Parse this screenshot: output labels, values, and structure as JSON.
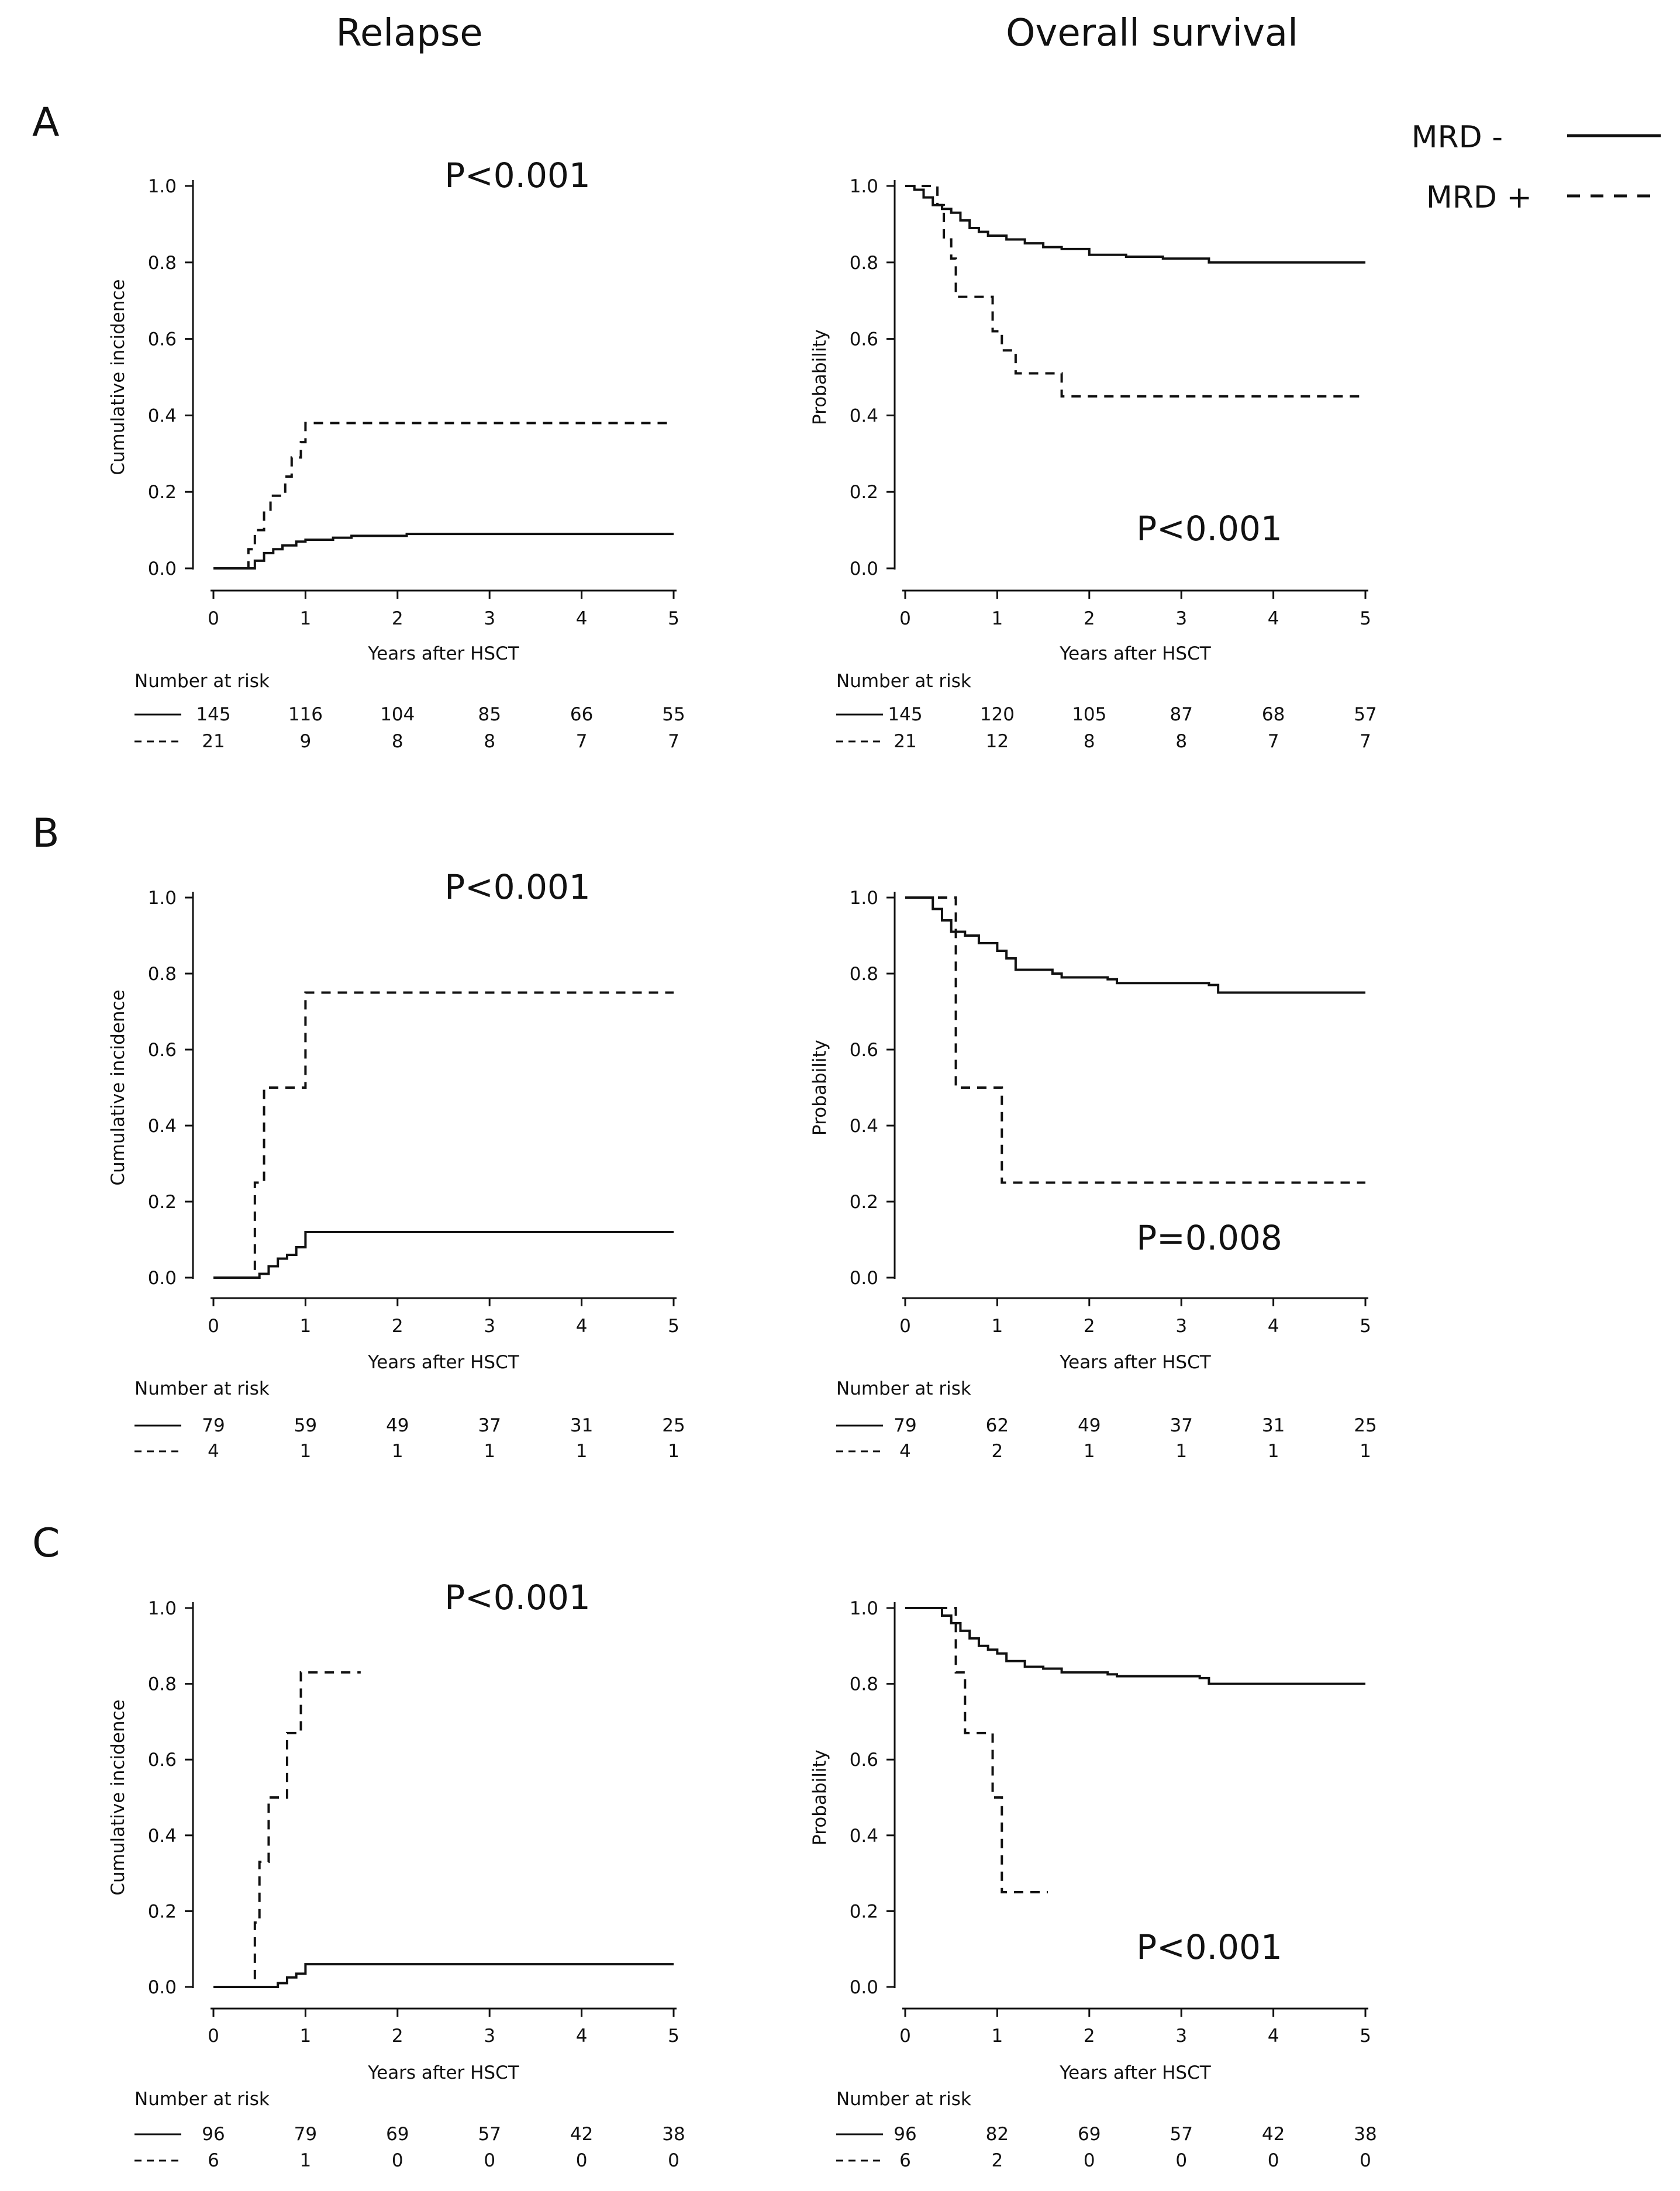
{
  "figure": {
    "column_headers": [
      "Relapse",
      "Overall survival"
    ],
    "legend": [
      {
        "label": "MRD -",
        "style": "solid"
      },
      {
        "label": "MRD +",
        "style": "dashed"
      }
    ],
    "colors": {
      "line": "#111111",
      "background": "#ffffff"
    },
    "risk_table_title": "Number at risk",
    "panels": [
      {
        "letter": "A"
      },
      {
        "letter": "B"
      },
      {
        "letter": "C"
      }
    ]
  },
  "chart_data": [
    {
      "id": "A-relapse",
      "panel": "A",
      "type": "line",
      "step": true,
      "title": "Relapse",
      "xlabel": "Years after HSCT",
      "ylabel": "Cumulative incidence",
      "xlim": [
        0,
        5
      ],
      "ylim": [
        0,
        1
      ],
      "xticks": [
        0,
        1,
        2,
        3,
        4,
        5
      ],
      "yticks": [
        "0.0",
        "0.2",
        "0.4",
        "0.6",
        "0.8",
        "1.0"
      ],
      "pvalue": "P<0.001",
      "pvalue_pos": "top-right",
      "series": [
        {
          "name": "MRD -",
          "style": "solid",
          "points": [
            [
              0,
              0
            ],
            [
              0.38,
              0
            ],
            [
              0.45,
              0.02
            ],
            [
              0.55,
              0.04
            ],
            [
              0.65,
              0.05
            ],
            [
              0.75,
              0.06
            ],
            [
              0.9,
              0.07
            ],
            [
              1.0,
              0.075
            ],
            [
              1.3,
              0.08
            ],
            [
              1.5,
              0.085
            ],
            [
              2.1,
              0.09
            ],
            [
              5,
              0.09
            ]
          ]
        },
        {
          "name": "MRD +",
          "style": "dashed",
          "points": [
            [
              0,
              0
            ],
            [
              0.35,
              0
            ],
            [
              0.38,
              0.05
            ],
            [
              0.45,
              0.1
            ],
            [
              0.55,
              0.15
            ],
            [
              0.62,
              0.19
            ],
            [
              0.78,
              0.24
            ],
            [
              0.85,
              0.29
            ],
            [
              0.95,
              0.33
            ],
            [
              1.0,
              0.38
            ],
            [
              5,
              0.38
            ]
          ]
        }
      ],
      "risk_table": {
        "x": [
          0,
          1,
          2,
          3,
          4,
          5
        ],
        "rows": [
          {
            "style": "solid",
            "values": [
              "145",
              "116",
              "104",
              "85",
              "66",
              "55"
            ]
          },
          {
            "style": "dashed",
            "values": [
              "21",
              "9",
              "8",
              "8",
              "7",
              "7"
            ]
          }
        ]
      }
    },
    {
      "id": "A-os",
      "panel": "A",
      "type": "line",
      "step": true,
      "title": "Overall survival",
      "xlabel": "Years after HSCT",
      "ylabel": "Probability",
      "xlim": [
        0,
        5
      ],
      "ylim": [
        0,
        1
      ],
      "xticks": [
        0,
        1,
        2,
        3,
        4,
        5
      ],
      "yticks": [
        "0.0",
        "0.2",
        "0.4",
        "0.6",
        "0.8",
        "1.0"
      ],
      "pvalue": "P<0.001",
      "pvalue_pos": "bottom-right",
      "series": [
        {
          "name": "MRD -",
          "style": "solid",
          "points": [
            [
              0,
              1
            ],
            [
              0.1,
              0.99
            ],
            [
              0.2,
              0.97
            ],
            [
              0.3,
              0.95
            ],
            [
              0.4,
              0.94
            ],
            [
              0.5,
              0.93
            ],
            [
              0.6,
              0.91
            ],
            [
              0.7,
              0.89
            ],
            [
              0.8,
              0.88
            ],
            [
              0.9,
              0.87
            ],
            [
              1.1,
              0.86
            ],
            [
              1.3,
              0.85
            ],
            [
              1.5,
              0.84
            ],
            [
              1.7,
              0.835
            ],
            [
              2.0,
              0.82
            ],
            [
              2.4,
              0.815
            ],
            [
              2.8,
              0.81
            ],
            [
              3.3,
              0.8
            ],
            [
              5,
              0.8
            ]
          ]
        },
        {
          "name": "MRD +",
          "style": "dashed",
          "points": [
            [
              0,
              1
            ],
            [
              0.3,
              1
            ],
            [
              0.35,
              0.95
            ],
            [
              0.42,
              0.86
            ],
            [
              0.5,
              0.81
            ],
            [
              0.55,
              0.71
            ],
            [
              0.85,
              0.71
            ],
            [
              0.95,
              0.62
            ],
            [
              1.05,
              0.57
            ],
            [
              1.2,
              0.51
            ],
            [
              1.65,
              0.51
            ],
            [
              1.7,
              0.45
            ],
            [
              5,
              0.45
            ]
          ]
        }
      ],
      "risk_table": {
        "x": [
          0,
          1,
          2,
          3,
          4,
          5
        ],
        "rows": [
          {
            "style": "solid",
            "values": [
              "145",
              "120",
              "105",
              "87",
              "68",
              "57"
            ]
          },
          {
            "style": "dashed",
            "values": [
              "21",
              "12",
              "8",
              "8",
              "7",
              "7"
            ]
          }
        ]
      }
    },
    {
      "id": "B-relapse",
      "panel": "B",
      "type": "line",
      "step": true,
      "title": "Relapse",
      "xlabel": "Years after HSCT",
      "ylabel": "Cumulative incidence",
      "xlim": [
        0,
        5
      ],
      "ylim": [
        0,
        1
      ],
      "xticks": [
        0,
        1,
        2,
        3,
        4,
        5
      ],
      "yticks": [
        "0.0",
        "0.2",
        "0.4",
        "0.6",
        "0.8",
        "1.0"
      ],
      "pvalue": "P<0.001",
      "pvalue_pos": "top-right",
      "series": [
        {
          "name": "MRD -",
          "style": "solid",
          "points": [
            [
              0,
              0
            ],
            [
              0.45,
              0
            ],
            [
              0.5,
              0.01
            ],
            [
              0.6,
              0.03
            ],
            [
              0.7,
              0.05
            ],
            [
              0.8,
              0.06
            ],
            [
              0.9,
              0.08
            ],
            [
              1.0,
              0.12
            ],
            [
              5,
              0.12
            ]
          ]
        },
        {
          "name": "MRD +",
          "style": "dashed",
          "points": [
            [
              0,
              0
            ],
            [
              0.45,
              0
            ],
            [
              0.45,
              0.25
            ],
            [
              0.55,
              0.25
            ],
            [
              0.55,
              0.5
            ],
            [
              1.0,
              0.5
            ],
            [
              1.0,
              0.75
            ],
            [
              5,
              0.75
            ]
          ]
        }
      ],
      "risk_table": {
        "x": [
          0,
          1,
          2,
          3,
          4,
          5
        ],
        "rows": [
          {
            "style": "solid",
            "values": [
              "79",
              "59",
              "49",
              "37",
              "31",
              "25"
            ]
          },
          {
            "style": "dashed",
            "values": [
              "4",
              "1",
              "1",
              "1",
              "1",
              "1"
            ]
          }
        ]
      }
    },
    {
      "id": "B-os",
      "panel": "B",
      "type": "line",
      "step": true,
      "title": "Overall survival",
      "xlabel": "Years after HSCT",
      "ylabel": "Probability",
      "xlim": [
        0,
        5
      ],
      "ylim": [
        0,
        1
      ],
      "xticks": [
        0,
        1,
        2,
        3,
        4,
        5
      ],
      "yticks": [
        "0.0",
        "0.2",
        "0.4",
        "0.6",
        "0.8",
        "1.0"
      ],
      "pvalue": "P=0.008",
      "pvalue_pos": "bottom-right",
      "series": [
        {
          "name": "MRD -",
          "style": "solid",
          "points": [
            [
              0,
              1
            ],
            [
              0.25,
              1
            ],
            [
              0.3,
              0.97
            ],
            [
              0.4,
              0.94
            ],
            [
              0.5,
              0.91
            ],
            [
              0.65,
              0.9
            ],
            [
              0.8,
              0.88
            ],
            [
              1.0,
              0.86
            ],
            [
              1.1,
              0.84
            ],
            [
              1.2,
              0.81
            ],
            [
              1.6,
              0.8
            ],
            [
              1.7,
              0.79
            ],
            [
              2.2,
              0.785
            ],
            [
              2.3,
              0.775
            ],
            [
              3.3,
              0.77
            ],
            [
              3.4,
              0.75
            ],
            [
              5,
              0.75
            ]
          ]
        },
        {
          "name": "MRD +",
          "style": "dashed",
          "points": [
            [
              0,
              1
            ],
            [
              0.55,
              1
            ],
            [
              0.55,
              0.5
            ],
            [
              1.05,
              0.5
            ],
            [
              1.05,
              0.25
            ],
            [
              5,
              0.25
            ]
          ]
        }
      ],
      "risk_table": {
        "x": [
          0,
          1,
          2,
          3,
          4,
          5
        ],
        "rows": [
          {
            "style": "solid",
            "values": [
              "79",
              "62",
              "49",
              "37",
              "31",
              "25"
            ]
          },
          {
            "style": "dashed",
            "values": [
              "4",
              "2",
              "1",
              "1",
              "1",
              "1"
            ]
          }
        ]
      }
    },
    {
      "id": "C-relapse",
      "panel": "C",
      "type": "line",
      "step": true,
      "title": "Relapse",
      "xlabel": "Years after HSCT",
      "ylabel": "Cumulative incidence",
      "xlim": [
        0,
        5
      ],
      "ylim": [
        0,
        1
      ],
      "xticks": [
        0,
        1,
        2,
        3,
        4,
        5
      ],
      "yticks": [
        "0.0",
        "0.2",
        "0.4",
        "0.6",
        "0.8",
        "1.0"
      ],
      "pvalue": "P<0.001",
      "pvalue_pos": "top-right",
      "series": [
        {
          "name": "MRD -",
          "style": "solid",
          "points": [
            [
              0,
              0
            ],
            [
              0.6,
              0
            ],
            [
              0.7,
              0.01
            ],
            [
              0.8,
              0.025
            ],
            [
              0.9,
              0.035
            ],
            [
              1.0,
              0.06
            ],
            [
              5,
              0.06
            ]
          ]
        },
        {
          "name": "MRD +",
          "style": "dashed",
          "points": [
            [
              0,
              0
            ],
            [
              0.45,
              0
            ],
            [
              0.45,
              0.17
            ],
            [
              0.5,
              0.17
            ],
            [
              0.5,
              0.33
            ],
            [
              0.6,
              0.33
            ],
            [
              0.6,
              0.5
            ],
            [
              0.8,
              0.5
            ],
            [
              0.8,
              0.67
            ],
            [
              0.95,
              0.67
            ],
            [
              0.95,
              0.83
            ],
            [
              1.6,
              0.83
            ]
          ]
        }
      ],
      "risk_table": {
        "x": [
          0,
          1,
          2,
          3,
          4,
          5
        ],
        "rows": [
          {
            "style": "solid",
            "values": [
              "96",
              "79",
              "69",
              "57",
              "42",
              "38"
            ]
          },
          {
            "style": "dashed",
            "values": [
              "6",
              "1",
              "0",
              "0",
              "0",
              "0"
            ]
          }
        ]
      }
    },
    {
      "id": "C-os",
      "panel": "C",
      "type": "line",
      "step": true,
      "title": "Overall survival",
      "xlabel": "Years after HSCT",
      "ylabel": "Probability",
      "xlim": [
        0,
        5
      ],
      "ylim": [
        0,
        1
      ],
      "xticks": [
        0,
        1,
        2,
        3,
        4,
        5
      ],
      "yticks": [
        "0.0",
        "0.2",
        "0.4",
        "0.6",
        "0.8",
        "1.0"
      ],
      "pvalue": "P<0.001",
      "pvalue_pos": "bottom-right",
      "series": [
        {
          "name": "MRD -",
          "style": "solid",
          "points": [
            [
              0,
              1
            ],
            [
              0.3,
              1
            ],
            [
              0.4,
              0.98
            ],
            [
              0.5,
              0.96
            ],
            [
              0.6,
              0.94
            ],
            [
              0.7,
              0.92
            ],
            [
              0.8,
              0.9
            ],
            [
              0.9,
              0.89
            ],
            [
              1.0,
              0.88
            ],
            [
              1.1,
              0.86
            ],
            [
              1.3,
              0.845
            ],
            [
              1.5,
              0.84
            ],
            [
              1.7,
              0.83
            ],
            [
              2.2,
              0.825
            ],
            [
              2.3,
              0.82
            ],
            [
              3.2,
              0.815
            ],
            [
              3.3,
              0.8
            ],
            [
              5,
              0.8
            ]
          ]
        },
        {
          "name": "MRD +",
          "style": "dashed",
          "points": [
            [
              0,
              1
            ],
            [
              0.55,
              1
            ],
            [
              0.55,
              0.83
            ],
            [
              0.65,
              0.83
            ],
            [
              0.65,
              0.67
            ],
            [
              0.95,
              0.67
            ],
            [
              0.95,
              0.5
            ],
            [
              1.05,
              0.5
            ],
            [
              1.05,
              0.25
            ],
            [
              1.55,
              0.25
            ]
          ]
        }
      ],
      "risk_table": {
        "x": [
          0,
          1,
          2,
          3,
          4,
          5
        ],
        "rows": [
          {
            "style": "solid",
            "values": [
              "96",
              "82",
              "69",
              "57",
              "42",
              "38"
            ]
          },
          {
            "style": "dashed",
            "values": [
              "6",
              "2",
              "0",
              "0",
              "0",
              "0"
            ]
          }
        ]
      }
    }
  ]
}
